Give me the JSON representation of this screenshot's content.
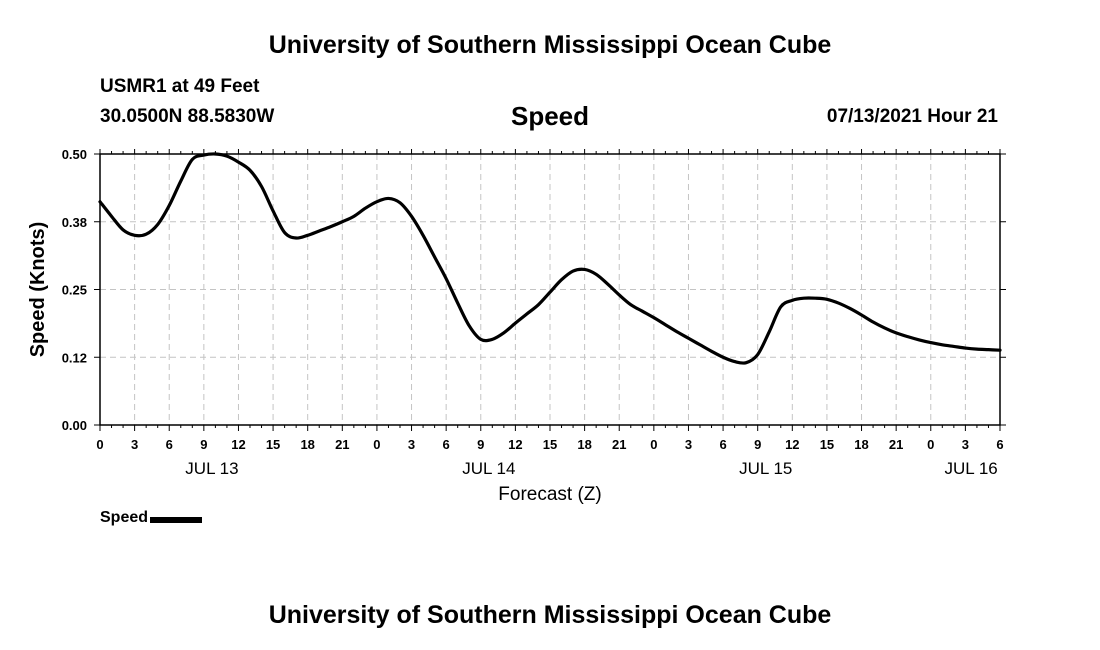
{
  "header": {
    "title": "University of Southern Mississippi Ocean Cube",
    "station": "USMR1 at 49 Feet",
    "coords": "30.0500N  88.5830W",
    "variable": "Speed",
    "timestamp": "07/13/2021 Hour 21"
  },
  "footer": {
    "title": "University of Southern Mississippi Ocean Cube"
  },
  "legend": {
    "label": "Speed",
    "color": "#000000"
  },
  "chart_data": {
    "type": "line",
    "title": "Speed",
    "xlabel": "Forecast (Z)",
    "ylabel": "Speed (Knots)",
    "xlim": [
      0,
      78
    ],
    "ylim": [
      0,
      0.5
    ],
    "yticks": [
      0.0,
      0.125,
      0.25,
      0.375,
      0.5
    ],
    "ytick_labels": [
      "0.00",
      "0.12",
      "0.25",
      "0.38",
      "0.50"
    ],
    "xticks": [
      0,
      3,
      6,
      9,
      12,
      15,
      18,
      21,
      24,
      27,
      30,
      33,
      36,
      39,
      42,
      45,
      48,
      51,
      54,
      57,
      60,
      63,
      66,
      69,
      72,
      75,
      78
    ],
    "xtick_labels": [
      "0",
      "3",
      "6",
      "9",
      "12",
      "15",
      "18",
      "21",
      "0",
      "3",
      "6",
      "9",
      "12",
      "15",
      "18",
      "21",
      "0",
      "3",
      "6",
      "9",
      "12",
      "15",
      "18",
      "21",
      "0",
      "3",
      "6"
    ],
    "date_labels": [
      {
        "x": 9.7,
        "label": "JUL 13"
      },
      {
        "x": 33.7,
        "label": "JUL 14"
      },
      {
        "x": 57.7,
        "label": "JUL 15"
      },
      {
        "x": 75.5,
        "label": "JUL 16"
      }
    ],
    "grid": true,
    "series": [
      {
        "name": "Speed",
        "color": "#000000",
        "x": [
          0,
          1,
          2,
          3,
          4,
          5,
          6,
          7,
          8,
          9,
          10,
          11,
          12,
          13,
          14,
          15,
          16,
          17,
          18,
          19,
          20,
          21,
          22,
          23,
          24,
          25,
          26,
          27,
          28,
          29,
          30,
          31,
          32,
          33,
          34,
          35,
          36,
          37,
          38,
          39,
          40,
          41,
          42,
          43,
          44,
          45,
          46,
          47,
          48,
          49,
          50,
          51,
          52,
          53,
          54,
          55,
          56,
          57,
          58,
          59,
          60,
          61,
          62,
          63,
          64,
          65,
          66,
          67,
          68,
          69,
          70,
          71,
          72,
          73,
          74,
          75,
          76,
          77,
          78
        ],
        "values": [
          0.412,
          0.385,
          0.36,
          0.35,
          0.352,
          0.37,
          0.405,
          0.45,
          0.49,
          0.498,
          0.5,
          0.496,
          0.485,
          0.47,
          0.44,
          0.395,
          0.355,
          0.345,
          0.35,
          0.358,
          0.366,
          0.375,
          0.385,
          0.4,
          0.412,
          0.418,
          0.41,
          0.385,
          0.35,
          0.31,
          0.27,
          0.225,
          0.183,
          0.158,
          0.158,
          0.17,
          0.188,
          0.205,
          0.222,
          0.245,
          0.268,
          0.284,
          0.287,
          0.278,
          0.26,
          0.24,
          0.222,
          0.21,
          0.198,
          0.185,
          0.172,
          0.16,
          0.148,
          0.136,
          0.125,
          0.117,
          0.115,
          0.13,
          0.172,
          0.218,
          0.23,
          0.234,
          0.234,
          0.232,
          0.225,
          0.215,
          0.203,
          0.19,
          0.179,
          0.17,
          0.163,
          0.157,
          0.152,
          0.148,
          0.145,
          0.142,
          0.14,
          0.139,
          0.138
        ]
      }
    ]
  }
}
